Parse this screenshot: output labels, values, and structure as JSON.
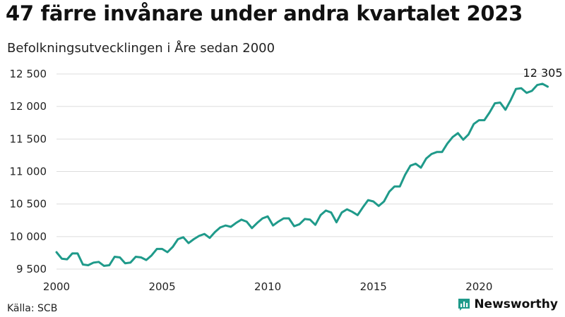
{
  "header": {
    "title": "47 färre invånare under andra kvartalet 2023",
    "subtitle": "Befolkningsutvecklingen i Åre sedan 2000"
  },
  "footer": {
    "source": "Källa: SCB",
    "brand": "Newsworthy"
  },
  "colors": {
    "line": "#1f9a8a",
    "grid": "#dddddd",
    "brand": "#1f9a8a"
  },
  "icons": {
    "brand": "bar-chart-logo-icon"
  },
  "chart_data": {
    "type": "line",
    "xlim": [
      2000,
      2023.5
    ],
    "ylim": [
      9500,
      12500
    ],
    "xticks": [
      2000,
      2005,
      2010,
      2015,
      2020
    ],
    "xtick_labels": [
      "2000",
      "2005",
      "2010",
      "2015",
      "2020"
    ],
    "yticks": [
      9500,
      10000,
      10500,
      11000,
      11500,
      12000,
      12500
    ],
    "ytick_labels": [
      "9 500",
      "10 000",
      "10 500",
      "11 000",
      "11 500",
      "12 000",
      "12 500"
    ],
    "grid": true,
    "annotation": {
      "x": 2023.25,
      "y": 12305,
      "text": "12 305"
    },
    "series": [
      {
        "x": [
          2000.0,
          2000.25,
          2000.5,
          2000.75,
          2001.0,
          2001.25,
          2001.5,
          2001.75,
          2002.0,
          2002.25,
          2002.5,
          2002.75,
          2003.0,
          2003.25,
          2003.5,
          2003.75,
          2004.0,
          2004.25,
          2004.5,
          2004.75,
          2005.0,
          2005.25,
          2005.5,
          2005.75,
          2006.0,
          2006.25,
          2006.5,
          2006.75,
          2007.0,
          2007.25,
          2007.5,
          2007.75,
          2008.0,
          2008.25,
          2008.5,
          2008.75,
          2009.0,
          2009.25,
          2009.5,
          2009.75,
          2010.0,
          2010.25,
          2010.5,
          2010.75,
          2011.0,
          2011.25,
          2011.5,
          2011.75,
          2012.0,
          2012.25,
          2012.5,
          2012.75,
          2013.0,
          2013.25,
          2013.5,
          2013.75,
          2014.0,
          2014.25,
          2014.5,
          2014.75,
          2015.0,
          2015.25,
          2015.5,
          2015.75,
          2016.0,
          2016.25,
          2016.5,
          2016.75,
          2017.0,
          2017.25,
          2017.5,
          2017.75,
          2018.0,
          2018.25,
          2018.5,
          2018.75,
          2019.0,
          2019.25,
          2019.5,
          2019.75,
          2020.0,
          2020.25,
          2020.5,
          2020.75,
          2021.0,
          2021.25,
          2021.5,
          2021.75,
          2022.0,
          2022.25,
          2022.5,
          2022.75,
          2023.0,
          2023.25
        ],
        "y": [
          9760,
          9660,
          9650,
          9740,
          9740,
          9570,
          9560,
          9600,
          9610,
          9550,
          9560,
          9690,
          9680,
          9590,
          9600,
          9690,
          9680,
          9640,
          9710,
          9810,
          9810,
          9760,
          9840,
          9960,
          9990,
          9900,
          9960,
          10010,
          10040,
          9980,
          10070,
          10140,
          10170,
          10150,
          10210,
          10260,
          10230,
          10130,
          10210,
          10280,
          10310,
          10170,
          10230,
          10280,
          10280,
          10160,
          10190,
          10270,
          10260,
          10180,
          10330,
          10400,
          10370,
          10220,
          10370,
          10420,
          10380,
          10330,
          10450,
          10560,
          10540,
          10470,
          10540,
          10690,
          10770,
          10770,
          10950,
          11090,
          11120,
          11060,
          11200,
          11270,
          11300,
          11300,
          11430,
          11530,
          11590,
          11490,
          11570,
          11730,
          11790,
          11790,
          11910,
          12050,
          12060,
          11950,
          12100,
          12270,
          12280,
          12210,
          12240,
          12330,
          12350,
          12305
        ]
      }
    ]
  }
}
